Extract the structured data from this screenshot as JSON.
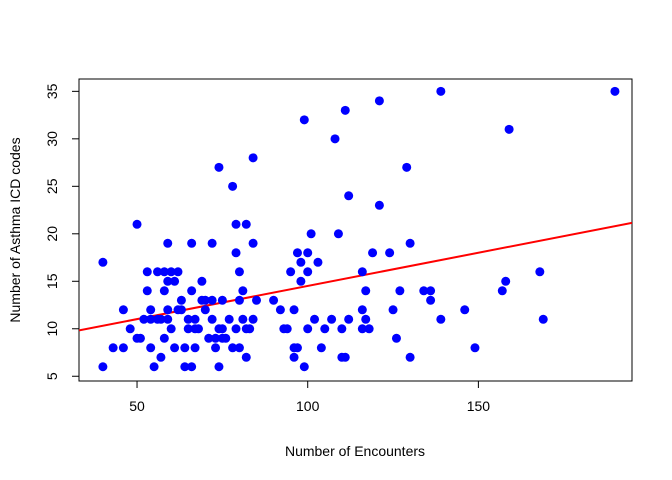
{
  "chart_data": {
    "type": "scatter",
    "title": "",
    "xlabel": "Number of Encounters",
    "ylabel": "Number of Asthma ICD codes",
    "xlim": [
      33,
      195
    ],
    "ylim": [
      4.5,
      36.3
    ],
    "xticks": [
      50,
      100,
      150
    ],
    "yticks": [
      5,
      10,
      15,
      20,
      25,
      30,
      35
    ],
    "grid": false,
    "legend": "none",
    "point_color": "#0000ff",
    "line_color": "#ff0000",
    "regression_line": {
      "intercept": 7.52,
      "slope": 0.0699
    },
    "series": [
      {
        "points": [
          [
            40,
            17
          ],
          [
            40,
            6
          ],
          [
            43,
            8
          ],
          [
            46,
            8
          ],
          [
            46,
            12
          ],
          [
            48,
            10
          ],
          [
            50,
            21
          ],
          [
            50,
            9
          ],
          [
            51,
            9
          ],
          [
            52,
            11
          ],
          [
            53,
            16
          ],
          [
            53,
            14
          ],
          [
            54,
            8
          ],
          [
            54,
            11
          ],
          [
            54,
            12
          ],
          [
            55,
            6
          ],
          [
            56,
            11
          ],
          [
            56,
            16
          ],
          [
            57,
            7
          ],
          [
            57,
            11
          ],
          [
            58,
            16
          ],
          [
            58,
            9
          ],
          [
            58,
            14
          ],
          [
            59,
            11
          ],
          [
            59,
            19
          ],
          [
            59,
            12
          ],
          [
            59,
            15
          ],
          [
            60,
            16
          ],
          [
            60,
            10
          ],
          [
            61,
            8
          ],
          [
            61,
            15
          ],
          [
            62,
            16
          ],
          [
            62,
            12
          ],
          [
            63,
            12
          ],
          [
            63,
            13
          ],
          [
            64,
            8
          ],
          [
            64,
            6
          ],
          [
            65,
            10
          ],
          [
            65,
            11
          ],
          [
            66,
            14
          ],
          [
            66,
            19
          ],
          [
            66,
            6
          ],
          [
            67,
            10
          ],
          [
            67,
            8
          ],
          [
            67,
            11
          ],
          [
            68,
            10
          ],
          [
            69,
            15
          ],
          [
            69,
            13
          ],
          [
            70,
            13
          ],
          [
            70,
            12
          ],
          [
            71,
            9
          ],
          [
            72,
            13
          ],
          [
            72,
            11
          ],
          [
            72,
            19
          ],
          [
            73,
            8
          ],
          [
            73,
            9
          ],
          [
            74,
            27
          ],
          [
            74,
            6
          ],
          [
            74,
            10
          ],
          [
            75,
            10
          ],
          [
            75,
            13
          ],
          [
            75,
            9
          ],
          [
            76,
            9
          ],
          [
            77,
            11
          ],
          [
            78,
            25
          ],
          [
            78,
            8
          ],
          [
            79,
            21
          ],
          [
            79,
            18
          ],
          [
            79,
            10
          ],
          [
            80,
            16
          ],
          [
            80,
            13
          ],
          [
            80,
            8
          ],
          [
            81,
            14
          ],
          [
            81,
            11
          ],
          [
            82,
            21
          ],
          [
            82,
            10
          ],
          [
            82,
            7
          ],
          [
            83,
            10
          ],
          [
            84,
            28
          ],
          [
            84,
            19
          ],
          [
            84,
            11
          ],
          [
            85,
            13
          ],
          [
            90,
            13
          ],
          [
            92,
            12
          ],
          [
            93,
            10
          ],
          [
            94,
            10
          ],
          [
            95,
            16
          ],
          [
            96,
            12
          ],
          [
            96,
            8
          ],
          [
            96,
            7
          ],
          [
            97,
            8
          ],
          [
            97,
            18
          ],
          [
            98,
            17
          ],
          [
            98,
            15
          ],
          [
            99,
            32
          ],
          [
            99,
            6
          ],
          [
            100,
            18
          ],
          [
            100,
            16
          ],
          [
            100,
            10
          ],
          [
            101,
            20
          ],
          [
            102,
            11
          ],
          [
            103,
            17
          ],
          [
            104,
            8
          ],
          [
            105,
            10
          ],
          [
            107,
            11
          ],
          [
            108,
            30
          ],
          [
            109,
            20
          ],
          [
            110,
            10
          ],
          [
            110,
            7
          ],
          [
            111,
            33
          ],
          [
            111,
            7
          ],
          [
            112,
            24
          ],
          [
            112,
            11
          ],
          [
            116,
            10
          ],
          [
            116,
            16
          ],
          [
            116,
            12
          ],
          [
            117,
            14
          ],
          [
            117,
            11
          ],
          [
            118,
            10
          ],
          [
            119,
            18
          ],
          [
            121,
            34
          ],
          [
            121,
            23
          ],
          [
            124,
            18
          ],
          [
            125,
            12
          ],
          [
            126,
            9
          ],
          [
            127,
            14
          ],
          [
            129,
            27
          ],
          [
            130,
            19
          ],
          [
            130,
            7
          ],
          [
            134,
            14
          ],
          [
            136,
            13
          ],
          [
            136,
            14
          ],
          [
            139,
            35
          ],
          [
            139,
            11
          ],
          [
            146,
            12
          ],
          [
            149,
            8
          ],
          [
            157,
            14
          ],
          [
            158,
            15
          ],
          [
            159,
            31
          ],
          [
            168,
            16
          ],
          [
            169,
            11
          ],
          [
            190,
            35
          ]
        ]
      }
    ]
  }
}
